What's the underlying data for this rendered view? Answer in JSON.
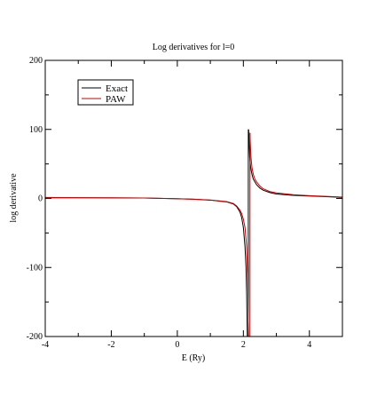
{
  "chart_data": {
    "type": "line",
    "title": "Log derivatives for l=0",
    "xlabel": "E (Ry)",
    "ylabel": "log derivative",
    "xlim": [
      -4,
      5
    ],
    "ylim": [
      -200,
      200
    ],
    "x_ticks": [
      -4,
      -2,
      0,
      2,
      4
    ],
    "x_tick_labels": [
      "-4",
      "-2",
      "0",
      "2",
      "4"
    ],
    "y_ticks": [
      -200,
      -100,
      0,
      100,
      200
    ],
    "y_tick_labels": [
      "-200",
      "-100",
      "0",
      "100",
      "200"
    ],
    "grid": false,
    "legend_position": "top-left",
    "series": [
      {
        "name": "Exact",
        "color": "#000000",
        "pole": 2.15,
        "segments": [
          {
            "x": [
              -4,
              -3,
              -2,
              -1,
              0,
              0.5,
              1,
              1.5,
              1.7,
              1.8,
              1.9,
              1.95,
              2.0,
              2.05,
              2.08,
              2.1,
              2.12
            ],
            "y": [
              1,
              0.9,
              0.8,
              0.6,
              -0.5,
              -1.2,
              -2.5,
              -5,
              -8,
              -12,
              -20,
              -28,
              -42,
              -70,
              -100,
              -140,
              -200
            ]
          },
          {
            "x": [
              2.16,
              2.17,
              2.19,
              2.22,
              2.26,
              2.3,
              2.4,
              2.5,
              2.6,
              2.8,
              3.0,
              3.5,
              4.0,
              4.5,
              5.0
            ],
            "y": [
              100,
              85,
              60,
              45,
              35,
              28,
              20,
              15,
              12,
              8.5,
              6.5,
              4.5,
              3.5,
              2.5,
              1.5
            ]
          }
        ]
      },
      {
        "name": "PAW",
        "color": "#cc0000",
        "pole": 2.2,
        "segments": [
          {
            "x": [
              -4,
              -3,
              -2,
              -1,
              0,
              0.5,
              1,
              1.5,
              1.7,
              1.8,
              1.9,
              1.95,
              2.0,
              2.05,
              2.1,
              2.13,
              2.16
            ],
            "y": [
              1.5,
              1.2,
              1.0,
              0.7,
              -0.4,
              -1.1,
              -2.3,
              -4.6,
              -7.4,
              -11,
              -17,
              -22,
              -30,
              -42,
              -70,
              -110,
              -200
            ]
          },
          {
            "x": [
              2.2,
              2.21,
              2.23,
              2.26,
              2.3,
              2.35,
              2.4,
              2.5,
              2.6,
              2.8,
              3.0,
              3.5,
              4.0,
              4.5,
              5.0
            ],
            "y": [
              95,
              80,
              60,
              45,
              35,
              28,
              24,
              18,
              14,
              10,
              8,
              5.5,
              4,
              3,
              2
            ]
          }
        ]
      }
    ]
  }
}
